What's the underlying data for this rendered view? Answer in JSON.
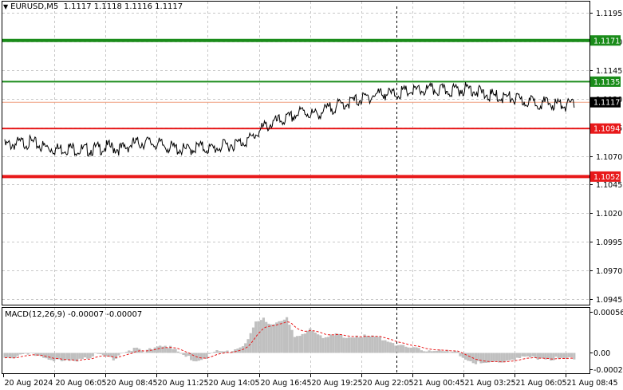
{
  "header": {
    "symbol": "EURUSD,M5",
    "ohlc": "1.1117 1.1118 1.1116 1.1117"
  },
  "colors": {
    "resistance": "#1a8c1a",
    "support": "#e8191a",
    "price_line": "#f0a080",
    "grid": "#c8c8c8",
    "histogram": "#c0c0c0",
    "signal": "#e8191a"
  },
  "chart_data": [
    {
      "type": "line",
      "symbol": "EURUSD",
      "timeframe": "M5",
      "y_ticks": [
        "1.1195",
        "1.1170",
        "1.1145",
        "1.1120",
        "1.1095",
        "1.1070",
        "1.1045",
        "1.1020",
        "1.0995",
        "1.0970",
        "1.0945"
      ],
      "x_ticks": [
        "20 Aug 2024",
        "20 Aug 06:05",
        "20 Aug 08:45",
        "20 Aug 11:25",
        "20 Aug 14:05",
        "20 Aug 16:45",
        "20 Aug 19:25",
        "20 Aug 22:05",
        "21 Aug 00:45",
        "21 Aug 03:25",
        "21 Aug 06:05",
        "21 Aug 08:45"
      ],
      "ylim": [
        1.094,
        1.1205
      ],
      "levels": [
        {
          "label": "1.1171",
          "value": 1.1171,
          "kind": "resistance",
          "weight": "thick"
        },
        {
          "label": "1.1135",
          "value": 1.1135,
          "kind": "resistance",
          "weight": "thin"
        },
        {
          "label": "1.1094",
          "value": 1.1094,
          "kind": "support",
          "weight": "thin"
        },
        {
          "label": "1.1052",
          "value": 1.1052,
          "kind": "support",
          "weight": "thick"
        }
      ],
      "current_price": {
        "label": "1.1117",
        "value": 1.1117
      },
      "price_anchors": [
        [
          0,
          1.1082
        ],
        [
          5,
          1.1084
        ],
        [
          10,
          1.1085
        ],
        [
          15,
          1.1081
        ],
        [
          20,
          1.1079
        ],
        [
          25,
          1.108
        ],
        [
          30,
          1.1078
        ],
        [
          35,
          1.1079
        ],
        [
          40,
          1.1081
        ],
        [
          45,
          1.1079
        ],
        [
          50,
          1.1084
        ],
        [
          55,
          1.1085
        ],
        [
          60,
          1.1083
        ],
        [
          65,
          1.108
        ],
        [
          70,
          1.1078
        ],
        [
          75,
          1.1081
        ],
        [
          80,
          1.1079
        ],
        [
          85,
          1.1082
        ],
        [
          90,
          1.1084
        ],
        [
          95,
          1.1088
        ],
        [
          100,
          1.1098
        ],
        [
          105,
          1.1103
        ],
        [
          110,
          1.1106
        ],
        [
          115,
          1.1112
        ],
        [
          120,
          1.1109
        ],
        [
          125,
          1.1114
        ],
        [
          130,
          1.1118
        ],
        [
          135,
          1.1121
        ],
        [
          140,
          1.1124
        ],
        [
          145,
          1.1128
        ],
        [
          150,
          1.1127
        ],
        [
          155,
          1.1129
        ],
        [
          160,
          1.113
        ],
        [
          165,
          1.1131
        ],
        [
          170,
          1.113
        ],
        [
          175,
          1.1131
        ],
        [
          180,
          1.1132
        ],
        [
          185,
          1.1127
        ],
        [
          190,
          1.1125
        ],
        [
          195,
          1.1124
        ],
        [
          200,
          1.1121
        ],
        [
          205,
          1.112
        ],
        [
          210,
          1.1119
        ],
        [
          215,
          1.1118
        ],
        [
          220,
          1.1117
        ]
      ]
    },
    {
      "type": "bar",
      "title": "MACD(12,26,9) -0.00007 -0.00007",
      "indicator": "MACD(12,26,9)",
      "values_text": "-0.00007 -0.00007",
      "y_ticks": [
        "0.00056",
        "0.00",
        "-0.00023"
      ],
      "ylim": [
        -0.00028,
        0.00062
      ],
      "histogram_anchors": [
        [
          0,
          -4e-05
        ],
        [
          6,
          -3e-05
        ],
        [
          12,
          -1e-05
        ],
        [
          18,
          -6e-05
        ],
        [
          22,
          -0.00011
        ],
        [
          26,
          -0.0001
        ],
        [
          30,
          -5e-05
        ],
        [
          36,
          -1e-05
        ],
        [
          42,
          -6e-05
        ],
        [
          46,
          4e-05
        ],
        [
          50,
          7e-05
        ],
        [
          54,
          2e-05
        ],
        [
          58,
          0.0001
        ],
        [
          62,
          0.00013
        ],
        [
          66,
          4e-05
        ],
        [
          70,
          -4e-05
        ],
        [
          74,
          -9e-05
        ],
        [
          78,
          -4e-05
        ],
        [
          82,
          4e-05
        ],
        [
          86,
          2e-05
        ],
        [
          90,
          8e-05
        ],
        [
          94,
          0.00018
        ],
        [
          97,
          0.00042
        ],
        [
          100,
          0.00048
        ],
        [
          103,
          0.00041
        ],
        [
          106,
          0.00047
        ],
        [
          109,
          0.00049
        ],
        [
          112,
          0.00021
        ],
        [
          115,
          0.00026
        ],
        [
          118,
          0.00037
        ],
        [
          121,
          0.0003
        ],
        [
          124,
          0.00022
        ],
        [
          128,
          0.00026
        ],
        [
          132,
          0.00022
        ],
        [
          136,
          0.00026
        ],
        [
          140,
          0.00024
        ],
        [
          145,
          0.00022
        ],
        [
          150,
          0.00016
        ],
        [
          155,
          8e-05
        ],
        [
          160,
          6e-05
        ],
        [
          165,
          6e-05
        ],
        [
          170,
          3e-05
        ],
        [
          175,
          1e-05
        ],
        [
          180,
          -0.0001
        ],
        [
          185,
          -0.00014
        ],
        [
          190,
          -0.00011
        ],
        [
          195,
          -8e-05
        ],
        [
          200,
          -6e-05
        ],
        [
          205,
          -5e-05
        ],
        [
          210,
          -6e-05
        ],
        [
          215,
          -7e-05
        ],
        [
          220,
          -7e-05
        ]
      ]
    }
  ]
}
